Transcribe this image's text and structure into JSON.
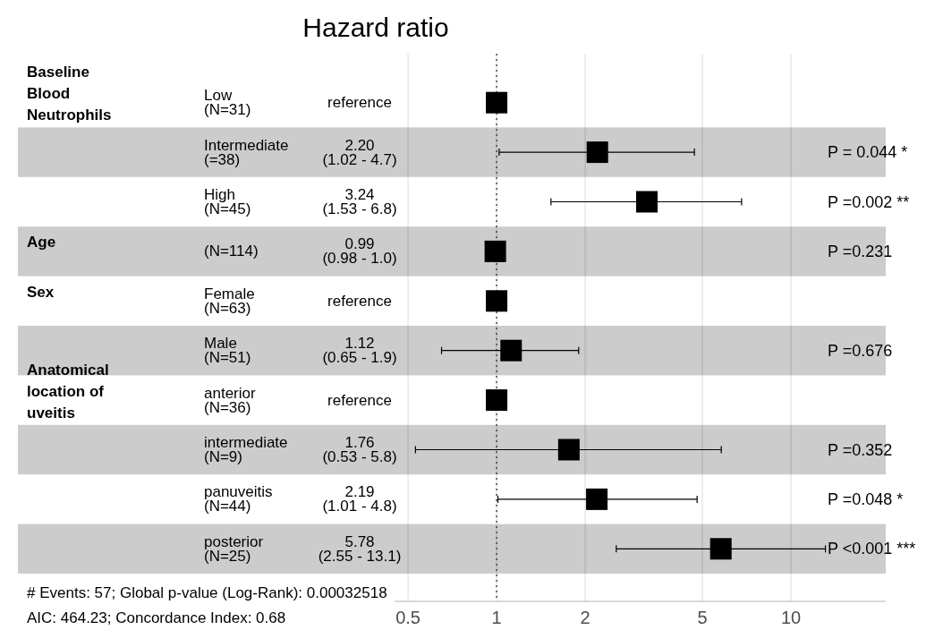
{
  "chart_data": {
    "type": "scatter",
    "title": "Hazard ratio",
    "orientation": "horizontal",
    "categories": [
      "Low\n(N=31)",
      "Intermediate\n(=38)",
      "High\n(N=45)",
      "(N=114)",
      "Female\n(N=63)",
      "Male\n(N=51)",
      "anterior\n(N=36)",
      "intermediate\n(N=9)",
      "panuveitis\n(N=44)",
      "posterior\n(N=25)"
    ],
    "y2_categories": [
      "Baseline\nBlood\nNeutrophils",
      null,
      null,
      "Age",
      "Sex",
      null,
      "Anatomical\nlocation of\nuveitis",
      null,
      null,
      null
    ],
    "values": [
      1,
      2.2,
      3.24,
      0.99,
      1,
      1.12,
      1,
      1.76,
      2.19,
      5.78
    ],
    "errors": [
      null,
      [
        1.02,
        4.7
      ],
      [
        1.53,
        6.8
      ],
      [
        0.98,
        1.0
      ],
      null,
      [
        0.65,
        1.9
      ],
      null,
      [
        0.53,
        5.8
      ],
      [
        1.01,
        4.8
      ],
      [
        2.55,
        13.1
      ]
    ],
    "value_labels": [
      "reference",
      "2.20\n(1.02 - 4.7)",
      "3.24\n(1.53 - 6.8)",
      "0.99\n(0.98 - 1.0)",
      "reference",
      "1.12\n(0.65 - 1.9)",
      "reference",
      "1.76\n(0.53 - 5.8)",
      "2.19\n(1.01 - 4.8)",
      "5.78\n(2.55 - 13.1)"
    ],
    "color": "#000000",
    "marker": "square",
    "log": "x",
    "grid": "x",
    "xlim": [
      0.45,
      21
    ],
    "xticks": [
      0.5,
      1,
      2,
      5,
      10
    ],
    "ref_lines": [
      {
        "axis": "x",
        "value": 1,
        "line_style": "dotted",
        "color": "#333333"
      }
    ],
    "annotations": [
      "P = 0.044 *",
      "P =0.002 **",
      "P =0.231",
      "P =0.676",
      "P =0.352",
      "P =0.048 *",
      "P <0.001 ***",
      "# Events: 57; Global p-value (Log-Rank): 0.00032518",
      "AIC: 464.23; Concordance Index: 0.68"
    ]
  }
}
